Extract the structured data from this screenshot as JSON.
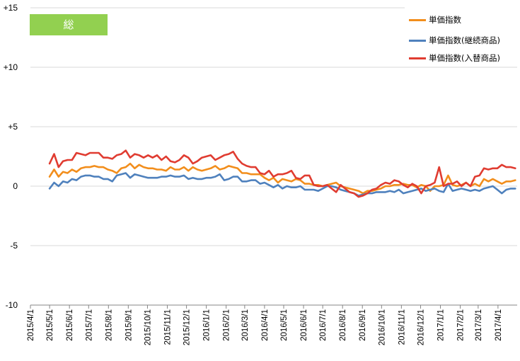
{
  "chart_data": {
    "type": "line",
    "title": "総　合",
    "title_color": "#92d050",
    "ylim": [
      -10,
      15
    ],
    "yticks": [
      {
        "value": 15,
        "label": "+15"
      },
      {
        "value": 10,
        "label": "+10"
      },
      {
        "value": 5,
        "label": "+5"
      },
      {
        "value": 0,
        "label": "0"
      },
      {
        "value": -5,
        "label": "-5"
      },
      {
        "value": -10,
        "label": "-10"
      }
    ],
    "x_tick_labels": [
      "2015/4/1",
      "2015/5/1",
      "2015/6/1",
      "2015/7/1",
      "2015/8/1",
      "2015/9/1",
      "2015/10/1",
      "2015/11/1",
      "2015/12/1",
      "2016/1/1",
      "2016/2/1",
      "2016/3/1",
      "2016/4/1",
      "2016/5/1",
      "2016/6/1",
      "2016/7/1",
      "2016/8/1",
      "2016/9/1",
      "2016/10/1",
      "2016/11/1",
      "2016/12/1",
      "2017/1/1",
      "2017/2/1",
      "2017/3/1",
      "2017/4/1"
    ],
    "legend_position": "top-right",
    "grid": {
      "horizontal": true,
      "vertical": false
    },
    "x": [
      "2015/5/1",
      "2015/5/8",
      "2015/5/15",
      "2015/5/22",
      "2015/5/29",
      "2015/6/5",
      "2015/6/12",
      "2015/6/19",
      "2015/6/26",
      "2015/7/3",
      "2015/7/10",
      "2015/7/17",
      "2015/7/24",
      "2015/7/31",
      "2015/8/7",
      "2015/8/14",
      "2015/8/21",
      "2015/8/28",
      "2015/9/4",
      "2015/9/11",
      "2015/9/18",
      "2015/9/25",
      "2015/10/2",
      "2015/10/9",
      "2015/10/16",
      "2015/10/23",
      "2015/10/30",
      "2015/11/6",
      "2015/11/13",
      "2015/11/20",
      "2015/11/27",
      "2015/12/4",
      "2015/12/11",
      "2015/12/18",
      "2015/12/25",
      "2016/1/1",
      "2016/1/8",
      "2016/1/15",
      "2016/1/22",
      "2016/1/29",
      "2016/2/5",
      "2016/2/12",
      "2016/2/19",
      "2016/2/26",
      "2016/3/4",
      "2016/3/11",
      "2016/3/18",
      "2016/3/25",
      "2016/4/1",
      "2016/4/8",
      "2016/4/15",
      "2016/4/22",
      "2016/4/29",
      "2016/5/6",
      "2016/5/13",
      "2016/5/20",
      "2016/5/27",
      "2016/6/3",
      "2016/6/10",
      "2016/6/17",
      "2016/6/24",
      "2016/7/1",
      "2016/7/8",
      "2016/7/15",
      "2016/7/22",
      "2016/7/29",
      "2016/8/5",
      "2016/8/12",
      "2016/8/19",
      "2016/8/26",
      "2016/9/2",
      "2016/9/9",
      "2016/9/16",
      "2016/9/23",
      "2016/9/30",
      "2016/10/7",
      "2016/10/14",
      "2016/10/21",
      "2016/10/28",
      "2016/11/4",
      "2016/11/11",
      "2016/11/18",
      "2016/11/25",
      "2016/12/2",
      "2016/12/9",
      "2016/12/16",
      "2016/12/23",
      "2016/12/30",
      "2017/1/6",
      "2017/1/13",
      "2017/1/20",
      "2017/1/27",
      "2017/2/3",
      "2017/2/10",
      "2017/2/17",
      "2017/2/24",
      "2017/3/3",
      "2017/3/10",
      "2017/3/17",
      "2017/3/24",
      "2017/3/31",
      "2017/4/7",
      "2017/4/14",
      "2017/4/21",
      "2017/4/28"
    ],
    "series": [
      {
        "name": "単価指数",
        "color": "#f28e1c",
        "values": [
          0.8,
          1.4,
          0.8,
          1.2,
          1.1,
          1.4,
          1.2,
          1.5,
          1.6,
          1.6,
          1.7,
          1.6,
          1.6,
          1.4,
          1.3,
          1.1,
          1.5,
          1.6,
          1.9,
          1.5,
          1.8,
          1.6,
          1.5,
          1.5,
          1.4,
          1.4,
          1.3,
          1.6,
          1.4,
          1.4,
          1.6,
          1.3,
          1.6,
          1.4,
          1.3,
          1.4,
          1.5,
          1.7,
          1.4,
          1.5,
          1.7,
          1.6,
          1.5,
          1.1,
          1.1,
          1.0,
          1.0,
          1.0,
          0.7,
          0.5,
          0.7,
          0.3,
          0.6,
          0.5,
          0.4,
          0.6,
          0.5,
          0.2,
          0.2,
          0.1,
          0.1,
          0.0,
          0.1,
          0.2,
          0.3,
          0.0,
          -0.1,
          -0.2,
          -0.3,
          -0.4,
          -0.6,
          -0.4,
          -0.4,
          -0.3,
          -0.2,
          0.0,
          0.0,
          0.1,
          0.1,
          0.2,
          0.1,
          0.1,
          -0.1,
          0.1,
          0.0,
          -0.4,
          0.0,
          0.0,
          0.1,
          0.9,
          0.1,
          0.0,
          0.1,
          0.3,
          0.0,
          0.2,
          0.0,
          0.6,
          0.4,
          0.6,
          0.4,
          0.2,
          0.4,
          0.4,
          0.5
        ]
      },
      {
        "name": "単価指数(継続商品)",
        "color": "#4f81bd",
        "values": [
          -0.2,
          0.3,
          0.0,
          0.4,
          0.3,
          0.6,
          0.5,
          0.8,
          0.9,
          0.9,
          0.8,
          0.8,
          0.6,
          0.6,
          0.4,
          0.9,
          1.0,
          1.1,
          0.7,
          1.0,
          0.9,
          0.8,
          0.7,
          0.7,
          0.7,
          0.8,
          0.8,
          0.9,
          0.8,
          0.8,
          0.9,
          0.6,
          0.7,
          0.6,
          0.6,
          0.7,
          0.7,
          0.8,
          1.0,
          0.5,
          0.6,
          0.8,
          0.8,
          0.4,
          0.4,
          0.5,
          0.5,
          0.2,
          0.3,
          0.1,
          -0.1,
          0.1,
          -0.2,
          0.0,
          -0.1,
          -0.1,
          0.0,
          -0.3,
          -0.3,
          -0.3,
          -0.4,
          -0.2,
          0.0,
          0.0,
          -0.1,
          -0.3,
          -0.4,
          -0.5,
          -0.6,
          -0.8,
          -0.7,
          -0.6,
          -0.6,
          -0.5,
          -0.5,
          -0.5,
          -0.4,
          -0.5,
          -0.3,
          -0.6,
          -0.5,
          -0.4,
          -0.3,
          -0.2,
          -0.4,
          -0.3,
          -0.2,
          -0.4,
          -0.5,
          0.2,
          -0.4,
          -0.3,
          -0.2,
          -0.3,
          -0.4,
          -0.3,
          -0.4,
          -0.2,
          -0.1,
          0.0,
          -0.3,
          -0.6,
          -0.3,
          -0.2,
          -0.2
        ]
      },
      {
        "name": "単価指数(入替商品)",
        "color": "#e03c31",
        "values": [
          1.9,
          2.7,
          1.6,
          2.1,
          2.2,
          2.2,
          2.8,
          2.7,
          2.6,
          2.8,
          2.8,
          2.8,
          2.4,
          2.4,
          2.3,
          2.6,
          2.7,
          3.0,
          2.4,
          2.7,
          2.6,
          2.4,
          2.6,
          2.4,
          2.6,
          2.2,
          2.5,
          2.1,
          2.0,
          2.2,
          2.6,
          2.4,
          1.9,
          2.1,
          2.4,
          2.5,
          2.6,
          2.2,
          2.4,
          2.6,
          2.7,
          2.9,
          2.3,
          1.9,
          1.7,
          1.6,
          1.6,
          1.1,
          1.0,
          1.3,
          0.8,
          1.0,
          1.0,
          1.1,
          1.3,
          0.7,
          0.6,
          0.9,
          0.9,
          0.1,
          0.0,
          0.0,
          0.1,
          -0.2,
          -0.5,
          0.1,
          -0.2,
          -0.5,
          -0.6,
          -0.9,
          -0.8,
          -0.6,
          -0.3,
          -0.2,
          0.1,
          0.3,
          0.2,
          0.5,
          0.4,
          0.1,
          -0.1,
          0.2,
          0.0,
          -0.6,
          0.0,
          0.1,
          0.3,
          1.6,
          0.0,
          0.2,
          0.2,
          0.4,
          0.0,
          0.3,
          0.0,
          0.8,
          0.9,
          1.5,
          1.4,
          1.5,
          1.5,
          1.8,
          1.6,
          1.6,
          1.5
        ]
      }
    ]
  }
}
